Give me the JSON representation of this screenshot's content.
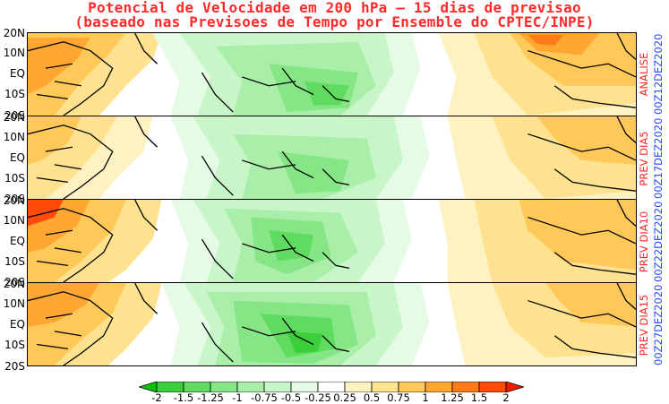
{
  "title": {
    "line1": "Potencial de Velocidade em 200 hPa – 15 dias de previsao",
    "line2": "(baseado nas Previsoes de Tempo por Ensemble do CPTEC/INPE)"
  },
  "lat_labels": [
    "20N",
    "10N",
    "EQ",
    "10S",
    "20S"
  ],
  "panels": [
    {
      "label_red": "ANALISE",
      "label_blue": "00Z12DEZ2020"
    },
    {
      "label_red": "PREV DIA5",
      "label_blue": "00Z17DEZ2020"
    },
    {
      "label_red": "PREV DIA10",
      "label_blue": "00Z22DEZ2020"
    },
    {
      "label_red": "PREV DIA15",
      "label_blue": "00Z27DEZ2020"
    }
  ],
  "colorbar": {
    "ticks": [
      "-2",
      "-1.5",
      "-1.25",
      "-1",
      "-0.75",
      "-0.5",
      "-0.25",
      "0.25",
      "0.5",
      "0.75",
      "1",
      "1.25",
      "1.5",
      "2"
    ],
    "colors": [
      "#0bbf0b",
      "#3ccf3c",
      "#5fdc5f",
      "#86e686",
      "#a9efa9",
      "#c9f6c9",
      "#e6fbe6",
      "#ffffff",
      "#fff2c2",
      "#ffe28f",
      "#ffc95a",
      "#ffa732",
      "#ff7b17",
      "#ff4a0a",
      "#ee1c00"
    ]
  }
}
